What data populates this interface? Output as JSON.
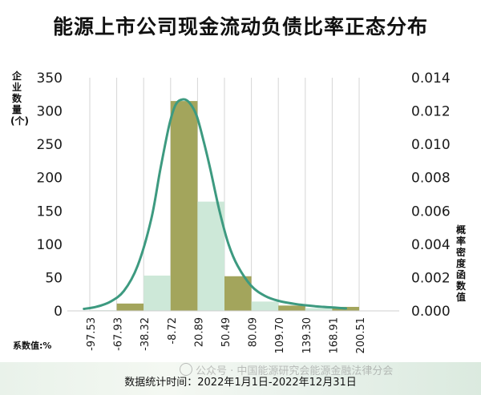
{
  "title": "能源上市公司现金流动负债比率正态分布",
  "left_axis_label": "企业数量(个)",
  "right_axis_label": "概率密度函数值",
  "x_axis_label": "系数值:%",
  "footer": "数据统计时间：2022年1月1日-2022年12月31日",
  "watermark": "公众号 · 中国能源研究会能源金融法律分会",
  "colors": {
    "bar_dark": "#a3a55c",
    "bar_light": "#cde8d8",
    "curve": "#3d9a80",
    "footer_band": "#e6f0e8"
  },
  "chart_data": {
    "type": "bar",
    "x_tick_labels": [
      "-97.53",
      "-67.93",
      "-38.32",
      "-8.72",
      "20.89",
      "50.49",
      "80.09",
      "109.70",
      "139.30",
      "168.91",
      "200.51"
    ],
    "bins": [
      {
        "from": "-97.53",
        "to": "-67.93",
        "value": 1,
        "shade": "light"
      },
      {
        "from": "-67.93",
        "to": "-38.32",
        "value": 11,
        "shade": "dark"
      },
      {
        "from": "-38.32",
        "to": "-8.72",
        "value": 53,
        "shade": "light"
      },
      {
        "from": "-8.72",
        "to": "20.89",
        "value": 315,
        "shade": "dark"
      },
      {
        "from": "20.89",
        "to": "50.49",
        "value": 164,
        "shade": "light"
      },
      {
        "from": "50.49",
        "to": "80.09",
        "value": 52,
        "shade": "dark"
      },
      {
        "from": "80.09",
        "to": "109.70",
        "value": 14,
        "shade": "light"
      },
      {
        "from": "109.70",
        "to": "139.30",
        "value": 8,
        "shade": "dark"
      },
      {
        "from": "139.30",
        "to": "168.91",
        "value": 4,
        "shade": "light"
      },
      {
        "from": "168.91",
        "to": "200.51",
        "value": 6,
        "shade": "dark"
      }
    ],
    "left_axis": {
      "label": "企业数量(个)",
      "range": [
        0,
        350
      ],
      "ticks": [
        0,
        50,
        100,
        150,
        200,
        250,
        300,
        350
      ]
    },
    "right_axis": {
      "label": "概率密度函数值",
      "range": [
        0,
        0.014
      ],
      "ticks": [
        "0.000",
        "0.002",
        "0.004",
        "0.006",
        "0.008",
        "0.010",
        "0.012",
        "0.014"
      ]
    },
    "density_curve": {
      "type": "line",
      "x": [
        -104,
        -90,
        -75,
        -60,
        -45,
        -30,
        -20,
        -10,
        -3,
        5,
        12,
        20,
        28,
        35,
        45,
        55,
        65,
        80,
        95,
        110,
        130,
        150,
        170,
        185
      ],
      "y": [
        0.00012,
        0.00025,
        0.00055,
        0.0012,
        0.0027,
        0.0055,
        0.0085,
        0.0112,
        0.0124,
        0.0127,
        0.0125,
        0.0117,
        0.0101,
        0.0085,
        0.006,
        0.004,
        0.0027,
        0.0015,
        0.0009,
        0.0006,
        0.0004,
        0.00028,
        0.0002,
        0.00015
      ]
    },
    "grid": "vertical"
  }
}
